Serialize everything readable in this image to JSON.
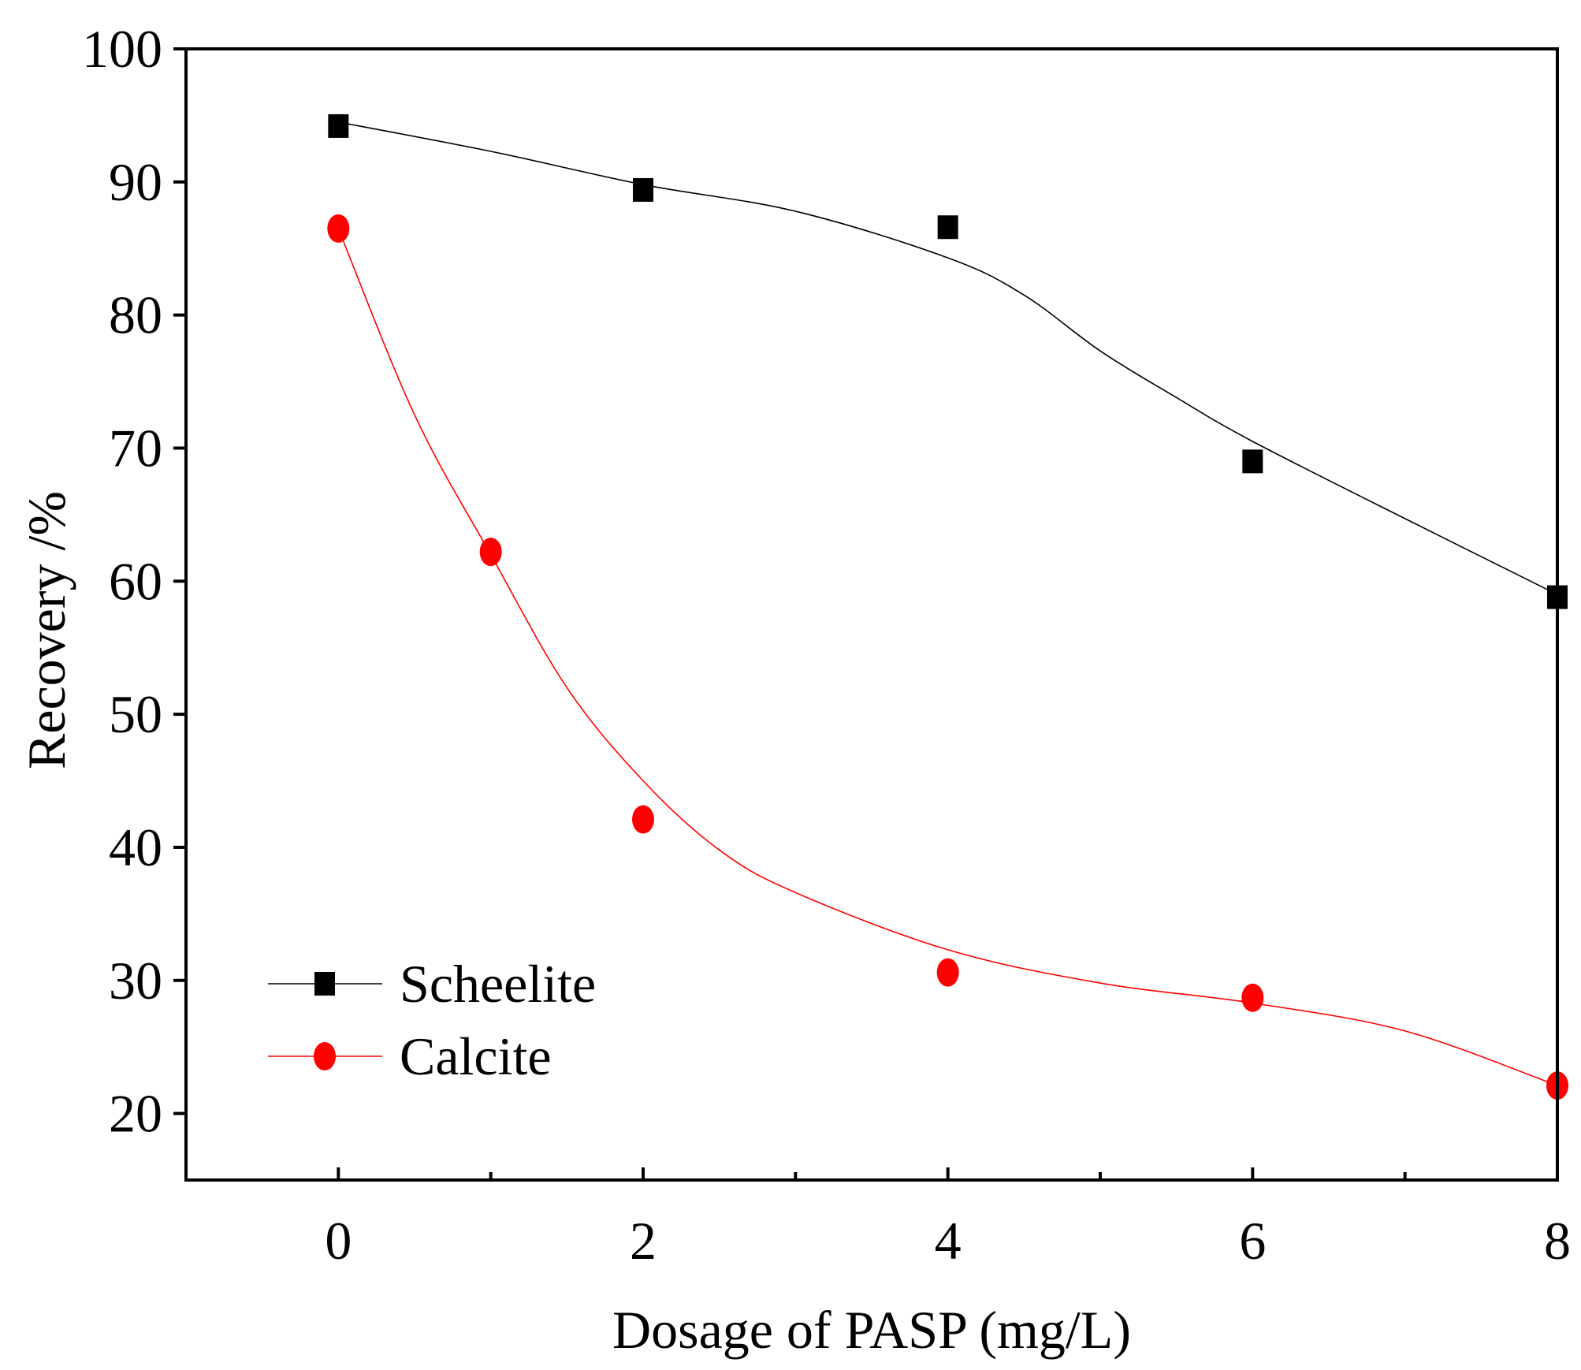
{
  "chart_data": {
    "type": "line",
    "title": "",
    "xlabel": "Dosage of PASP (mg/L)",
    "ylabel": "Recovery /%",
    "xlim": [
      -1,
      8
    ],
    "ylim": [
      15,
      100
    ],
    "xticks": [
      0,
      2,
      4,
      6,
      8
    ],
    "xticks_minor": [
      1,
      3,
      5,
      7
    ],
    "yticks": [
      20,
      30,
      40,
      50,
      60,
      70,
      80,
      90,
      100
    ],
    "grid": false,
    "legend_position": "bottom-left",
    "series": [
      {
        "name": "Scheelite",
        "color": "#000000",
        "marker": "square",
        "x": [
          0,
          2,
          4,
          6,
          8
        ],
        "y": [
          94.2,
          89.4,
          86.6,
          69.0,
          58.8
        ]
      },
      {
        "name": "Calcite",
        "color": "#ff0000",
        "marker": "circle",
        "x": [
          0,
          1,
          2,
          4,
          6,
          8
        ],
        "y": [
          86.5,
          62.2,
          42.1,
          30.6,
          28.7,
          22.1
        ]
      }
    ],
    "fitted_curves": [
      {
        "series": "Scheelite",
        "x": [
          0,
          1,
          2,
          3,
          4,
          4.5,
          5,
          5.5,
          6,
          7,
          8
        ],
        "y": [
          94.5,
          92.3,
          89.8,
          87.8,
          84.3,
          81.5,
          77.3,
          73.8,
          70.5,
          64.7,
          59.0
        ]
      },
      {
        "series": "Calcite",
        "x": [
          0,
          0.5,
          1,
          1.5,
          2,
          2.5,
          3,
          4,
          5,
          6,
          7,
          8
        ],
        "y": [
          86.5,
          72.5,
          62.0,
          52.0,
          45.0,
          39.8,
          36.6,
          32.3,
          29.8,
          28.3,
          26.2,
          22.1
        ]
      }
    ]
  }
}
